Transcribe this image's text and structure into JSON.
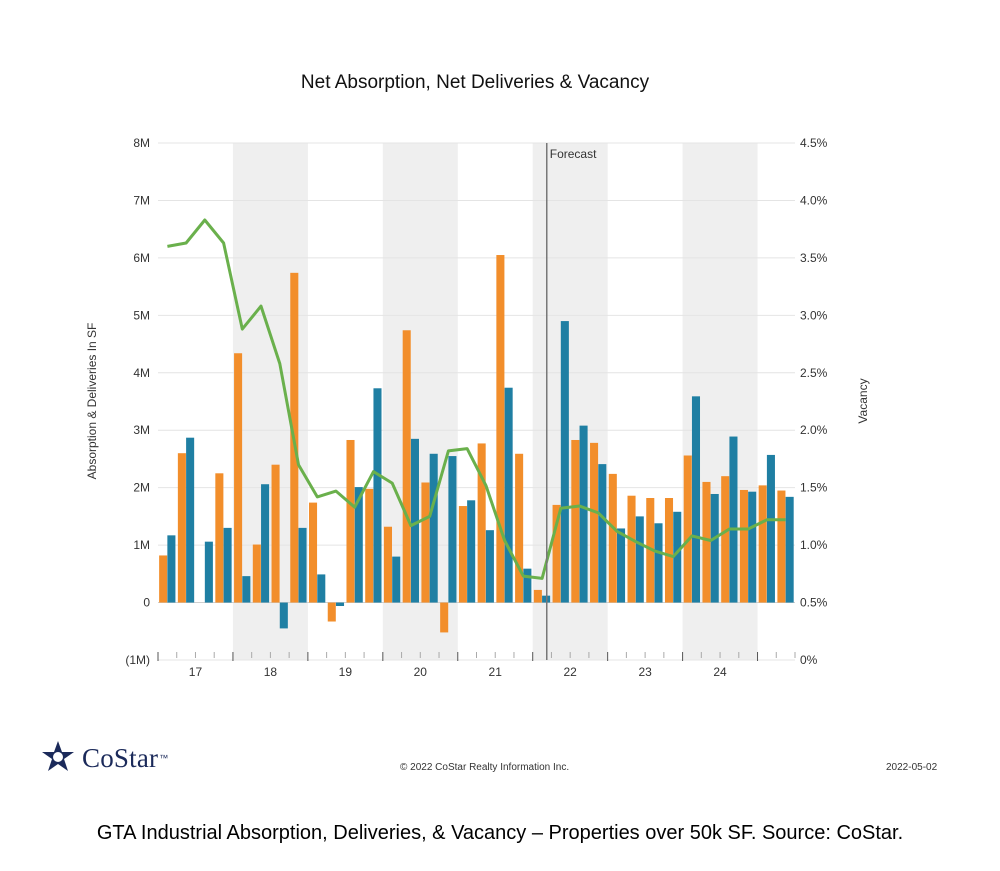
{
  "chart_data": {
    "type": "bar",
    "title": "Net Absorption, Net Deliveries & Vacancy",
    "ylabel": "Absorption & Deliveries In SF",
    "y2label": "Vacancy",
    "ylim": [
      -1,
      8
    ],
    "y2lim": [
      0,
      4.5
    ],
    "yticks": [
      "(1M)",
      "0",
      "1M",
      "2M",
      "3M",
      "4M",
      "5M",
      "6M",
      "7M",
      "8M"
    ],
    "y2ticks": [
      "0%",
      "0.5%",
      "1.0%",
      "1.5%",
      "2.0%",
      "2.5%",
      "3.0%",
      "3.5%",
      "4.0%",
      "4.5%"
    ],
    "year_labels": [
      "17",
      "18",
      "19",
      "20",
      "21",
      "22",
      "23",
      "24"
    ],
    "forecast_label": "Forecast",
    "forecast_after_quarter": 20,
    "shaded_years": [
      "18",
      "20",
      "22",
      "24"
    ],
    "quarters_per_year": 4,
    "series": [
      {
        "type": "bar",
        "color": "#f28e2b",
        "values": [
          0.82,
          2.6,
          0,
          2.25,
          4.34,
          1.01,
          2.4,
          5.74,
          1.74,
          -0.33,
          2.83,
          1.98,
          1.32,
          4.74,
          2.09,
          -0.52,
          1.68,
          2.77,
          6.05,
          2.59,
          0.22,
          1.7,
          2.83,
          2.78,
          2.24,
          1.86,
          1.82,
          1.82,
          2.56,
          2.1,
          2.2,
          1.96,
          2.04,
          1.95
        ]
      },
      {
        "type": "bar",
        "color": "#1f7fa3",
        "values": [
          1.17,
          2.87,
          1.06,
          1.3,
          0.46,
          2.06,
          -0.45,
          1.3,
          0.49,
          -0.06,
          2.01,
          3.73,
          0.8,
          2.85,
          2.59,
          2.55,
          1.78,
          1.26,
          3.74,
          0.59,
          0.12,
          4.9,
          3.08,
          2.41,
          1.29,
          1.5,
          1.38,
          1.58,
          3.59,
          1.89,
          2.89,
          1.93,
          2.57,
          1.84
        ]
      },
      {
        "type": "line",
        "color": "#6ab04c",
        "axis": "right",
        "values": [
          3.6,
          3.63,
          3.83,
          3.63,
          2.88,
          3.08,
          2.58,
          1.7,
          1.42,
          1.47,
          1.33,
          1.64,
          1.54,
          1.17,
          1.25,
          1.82,
          1.84,
          1.52,
          1.04,
          0.73,
          0.71,
          1.32,
          1.34,
          1.28,
          1.12,
          1.03,
          0.95,
          0.9,
          1.08,
          1.04,
          1.14,
          1.14,
          1.22,
          1.22
        ]
      }
    ]
  },
  "footer": {
    "logo_text": "CoStar",
    "logo_tm": "™",
    "copyright": "© 2022 CoStar Realty Information Inc.",
    "date": "2022-05-02"
  },
  "caption": "GTA Industrial Absorption, Deliveries, & Vacancy – Properties over 50k SF. Source: CoStar."
}
